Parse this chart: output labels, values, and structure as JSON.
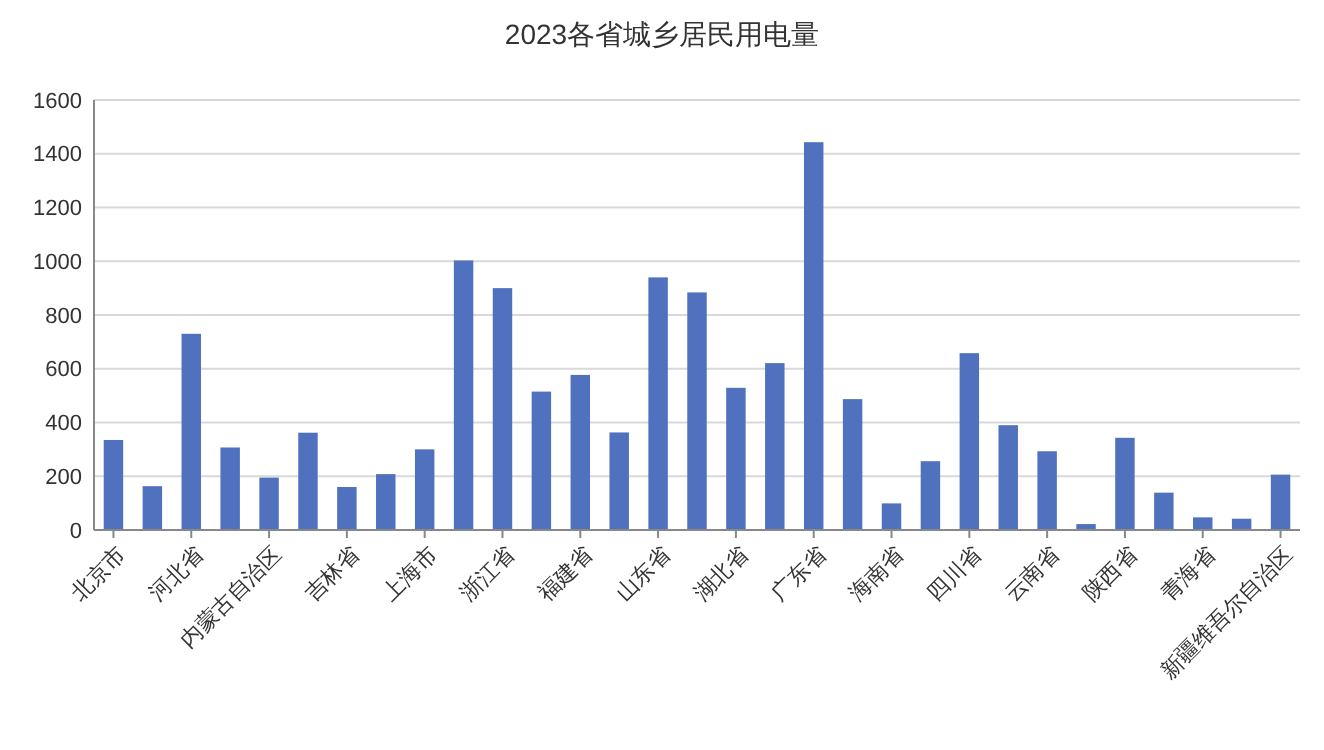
{
  "chart_data": {
    "type": "bar",
    "title": "2023各省城乡居民用电量",
    "categories": [
      "北京市",
      null,
      "河北省",
      null,
      "内蒙古自治区",
      null,
      "吉林省",
      null,
      "上海市",
      null,
      "浙江省",
      null,
      "福建省",
      null,
      "山东省",
      null,
      "湖北省",
      null,
      "广东省",
      null,
      "海南省",
      null,
      "四川省",
      null,
      "云南省",
      null,
      "陕西省",
      null,
      "青海省",
      null,
      "新疆维吾尔自治区"
    ],
    "values": [
      335,
      163,
      730,
      307,
      195,
      362,
      160,
      208,
      300,
      1003,
      900,
      515,
      577,
      363,
      940,
      884,
      529,
      621,
      1443,
      487,
      99,
      256,
      658,
      390,
      293,
      22,
      343,
      139,
      47,
      42,
      206
    ],
    "color": "#4f71be",
    "ylim": [
      0,
      1600
    ],
    "yticks": [
      0,
      200,
      400,
      600,
      800,
      1000,
      1200,
      1400,
      1600
    ],
    "grid": "y"
  }
}
